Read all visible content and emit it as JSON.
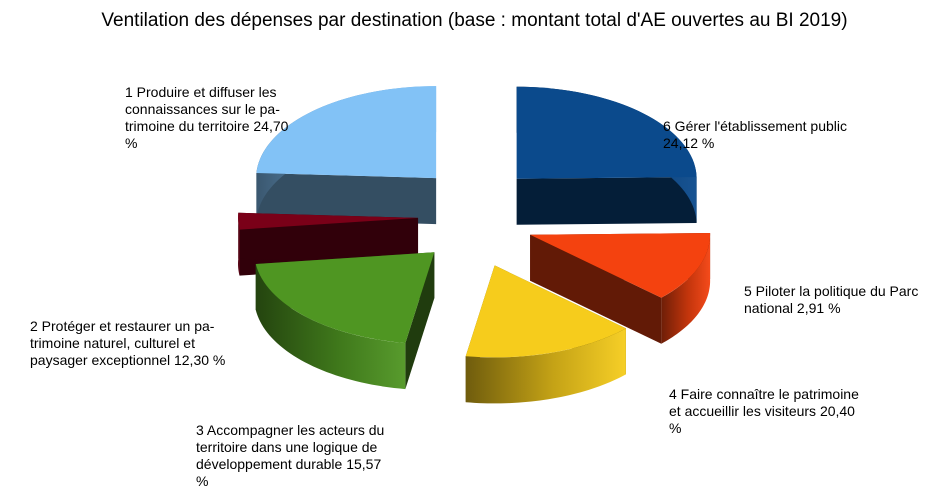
{
  "chart_data": {
    "type": "pie",
    "title": "Ventilation des dépenses par destination (base : montant total d'AE ouvertes au BI 2019)",
    "slices": [
      {
        "label": "1 Produire et diffuser les\nconnaissances sur le pa-\ntrimoine du territoire 24,70\n%",
        "value": 24.7,
        "color": "#0b4a8c"
      },
      {
        "label": "2 Protéger et restaurer un pa-\ntrimoine naturel, culturel et\npaysager exceptionnel 12,30 %",
        "value": 12.3,
        "color": "#f4420f"
      },
      {
        "label": "3 Accompagner les acteurs du\nterritoire dans une logique de\ndéveloppement durable 15,57\n%",
        "value": 15.57,
        "color": "#f6cc1c"
      },
      {
        "label": "4 Faire connaître le patrimoine\net accueillir les visiteurs 20,40\n%",
        "value": 20.4,
        "color": "#4f9622"
      },
      {
        "label": "5 Piloter la politique du Parc\nnational 2,91 %",
        "value": 2.91,
        "color": "#7a0018"
      },
      {
        "label": "6 Gérer l'établissement public\n24,12 %",
        "value": 24.12,
        "color": "#82c2f6"
      }
    ]
  }
}
